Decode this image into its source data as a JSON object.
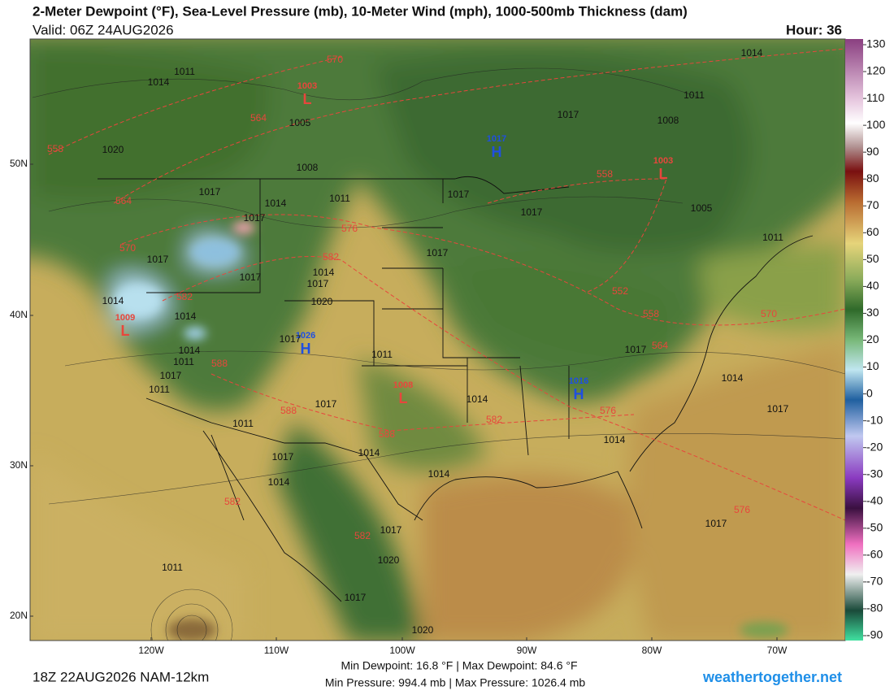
{
  "header": {
    "title": "2-Meter Dewpoint (°F), Sea-Level Pressure (mb), 10-Meter Wind (mph), 1000-500mb Thickness (dam)",
    "valid": "Valid: 06Z 24AUG2026",
    "hour": "Hour: 36"
  },
  "colorbar": {
    "ticks": [
      130,
      120,
      110,
      100,
      90,
      80,
      70,
      60,
      50,
      40,
      30,
      20,
      10,
      0,
      -10,
      -20,
      -30,
      -40,
      -50,
      -60,
      -70,
      -80,
      -90
    ]
  },
  "map": {
    "lat_labels": [
      "50N",
      "40N",
      "30N",
      "20N"
    ],
    "lon_labels": [
      "120W",
      "110W",
      "100W",
      "90W",
      "80W",
      "70W"
    ],
    "centers": [
      {
        "letter": "L",
        "value": "1003"
      },
      {
        "letter": "L",
        "value": "1009"
      },
      {
        "letter": "L",
        "value": "1008"
      },
      {
        "letter": "L",
        "value": "1003"
      },
      {
        "letter": "H",
        "value": "1017"
      },
      {
        "letter": "H",
        "value": "1026"
      },
      {
        "letter": "H",
        "value": "1016"
      }
    ],
    "isobar_labels": [
      "1014",
      "1011",
      "1020",
      "1005",
      "1008",
      "1017",
      "1014",
      "1017",
      "1011",
      "1017",
      "1017",
      "1014",
      "1017",
      "1020",
      "1014",
      "1014",
      "1014",
      "1011",
      "1017",
      "1011",
      "1017",
      "1011",
      "1017",
      "1011",
      "1017",
      "1014",
      "1014",
      "1014",
      "1014",
      "1017",
      "1017",
      "1017",
      "1017",
      "1011",
      "1008",
      "1014",
      "1005",
      "1011",
      "1017",
      "1014",
      "1014",
      "1017",
      "1017",
      "1017",
      "1020",
      "1017",
      "1020",
      "1011"
    ],
    "thickness_labels": [
      "570",
      "564",
      "558",
      "564",
      "570",
      "576",
      "582",
      "582",
      "588",
      "588",
      "588",
      "582",
      "576",
      "558",
      "552",
      "558",
      "564",
      "570",
      "576",
      "582",
      "582"
    ]
  },
  "footer": {
    "run": "18Z 22AUG2026 NAM-12km",
    "dewpoint": "Min Dewpoint:  16.8 °F | Max Dewpoint:  84.6 °F",
    "pressure": "Min Pressure: 994.4 mb | Max Pressure: 1026.4 mb",
    "site": "weathertogether.net"
  }
}
